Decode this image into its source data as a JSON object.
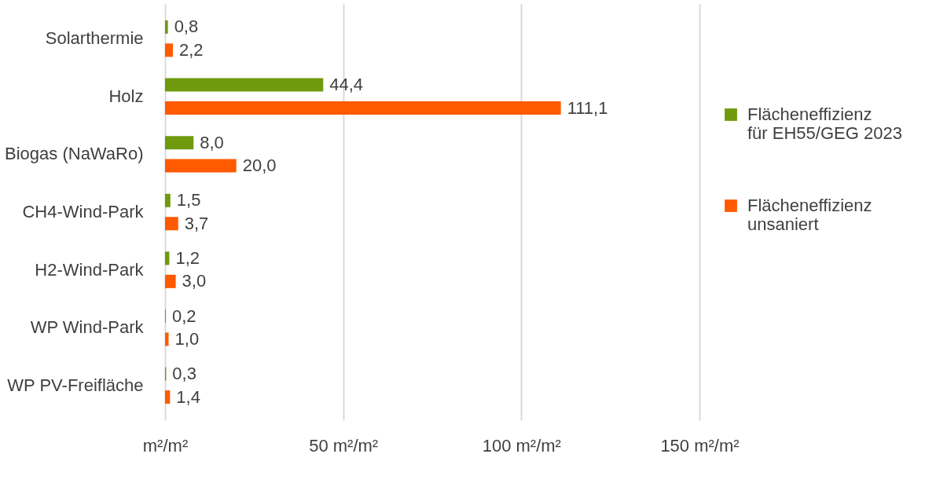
{
  "chart_data": {
    "type": "bar",
    "orientation": "horizontal",
    "categories": [
      "Solarthermie",
      "Holz",
      "Biogas (NaWaRo)",
      "CH4-Wind-Park",
      "H2-Wind-Park",
      "WP Wind-Park",
      "WP PV-Freifläche"
    ],
    "series": [
      {
        "name": "Flächeneffizienz für EH55/GEG 2023",
        "color": "#6f9a0e",
        "values": [
          0.8,
          44.4,
          8.0,
          1.5,
          1.2,
          0.2,
          0.3
        ],
        "value_labels": [
          "0,8",
          "44,4",
          "8,0",
          "1,5",
          "1,2",
          "0,2",
          "0,3"
        ]
      },
      {
        "name": "Flächeneffizienz unsaniert",
        "color": "#ff5a00",
        "values": [
          2.2,
          111.1,
          20.0,
          3.7,
          3.0,
          1.0,
          1.4
        ],
        "value_labels": [
          "2,2",
          "111,1",
          "20,0",
          "3,7",
          "3,0",
          "1,0",
          "1,4"
        ]
      }
    ],
    "xlim": [
      0,
      150
    ],
    "xticks": [
      {
        "value": 0,
        "label": "m²/m²"
      },
      {
        "value": 50,
        "label": "50 m²/m²"
      },
      {
        "value": 100,
        "label": "100 m²/m²"
      },
      {
        "value": 150,
        "label": "150 m²/m²"
      }
    ],
    "grid": "x",
    "legend": "right"
  }
}
